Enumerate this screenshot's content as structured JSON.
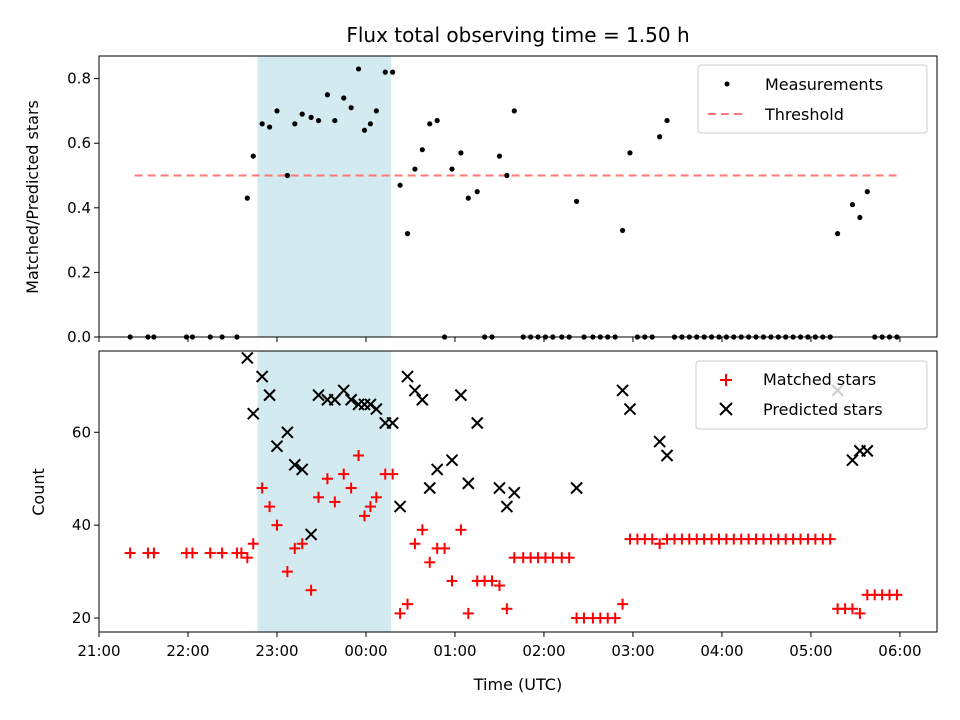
{
  "chart_data": [
    {
      "type": "scatter",
      "title": "Flux total observing time = 1.50 h",
      "xlabel": "",
      "ylabel": "Matched/Predicted stars",
      "xlim": [
        "21:00",
        "06:25"
      ],
      "ylim": [
        0,
        0.87
      ],
      "yticks": [
        0.0,
        0.2,
        0.4,
        0.6,
        0.8
      ],
      "ytick_labels": [
        "0.0",
        "0.2",
        "0.4",
        "0.6",
        "0.8"
      ],
      "xticks": [
        "21:00",
        "22:00",
        "23:00",
        "00:00",
        "01:00",
        "02:00",
        "03:00",
        "04:00",
        "05:00",
        "06:00"
      ],
      "shaded_span": {
        "start": "22:47",
        "end": "00:17",
        "color": "#a6d5e2"
      },
      "legend": {
        "position": "upper right",
        "entries": [
          "Measurements",
          "Threshold"
        ]
      },
      "series": [
        {
          "name": "Measurements",
          "marker": "dot",
          "color": "#000000",
          "points": [
            [
              "21:21",
              0
            ],
            [
              "21:33",
              0
            ],
            [
              "21:37",
              0
            ],
            [
              "21:59",
              0
            ],
            [
              "22:03",
              0
            ],
            [
              "22:15",
              0
            ],
            [
              "22:23",
              0
            ],
            [
              "22:33",
              0
            ],
            [
              "22:40",
              0.43
            ],
            [
              "22:44",
              0.56
            ],
            [
              "22:50",
              0.66
            ],
            [
              "22:55",
              0.65
            ],
            [
              "23:00",
              0.7
            ],
            [
              "23:07",
              0.5
            ],
            [
              "23:12",
              0.66
            ],
            [
              "23:17",
              0.69
            ],
            [
              "23:23",
              0.68
            ],
            [
              "23:28",
              0.67
            ],
            [
              "23:34",
              0.75
            ],
            [
              "23:39",
              0.67
            ],
            [
              "23:45",
              0.74
            ],
            [
              "23:50",
              0.71
            ],
            [
              "23:55",
              0.83
            ],
            [
              "23:59",
              0.64
            ],
            [
              "00:03",
              0.66
            ],
            [
              "00:07",
              0.7
            ],
            [
              "00:13",
              0.82
            ],
            [
              "00:18",
              0.82
            ],
            [
              "00:23",
              0.47
            ],
            [
              "00:28",
              0.32
            ],
            [
              "00:33",
              0.52
            ],
            [
              "00:38",
              0.58
            ],
            [
              "00:43",
              0.66
            ],
            [
              "00:48",
              0.67
            ],
            [
              "00:53",
              0
            ],
            [
              "00:58",
              0.52
            ],
            [
              "01:04",
              0.57
            ],
            [
              "01:09",
              0.43
            ],
            [
              "01:15",
              0.45
            ],
            [
              "01:20",
              0
            ],
            [
              "01:25",
              0
            ],
            [
              "01:30",
              0.56
            ],
            [
              "01:35",
              0.5
            ],
            [
              "01:40",
              0.7
            ],
            [
              "01:46",
              0
            ],
            [
              "01:51",
              0
            ],
            [
              "01:56",
              0
            ],
            [
              "02:01",
              0
            ],
            [
              "02:06",
              0
            ],
            [
              "02:12",
              0
            ],
            [
              "02:17",
              0
            ],
            [
              "02:22",
              0.42
            ],
            [
              "02:27",
              0
            ],
            [
              "02:33",
              0
            ],
            [
              "02:38",
              0
            ],
            [
              "02:43",
              0
            ],
            [
              "02:48",
              0
            ],
            [
              "02:53",
              0.33
            ],
            [
              "02:58",
              0.57
            ],
            [
              "03:03",
              0
            ],
            [
              "03:08",
              0
            ],
            [
              "03:13",
              0
            ],
            [
              "03:18",
              0.62
            ],
            [
              "03:23",
              0.67
            ],
            [
              "03:28",
              0
            ],
            [
              "03:33",
              0
            ],
            [
              "03:38",
              0
            ],
            [
              "03:43",
              0
            ],
            [
              "03:48",
              0
            ],
            [
              "03:53",
              0
            ],
            [
              "03:58",
              0
            ],
            [
              "04:03",
              0
            ],
            [
              "04:08",
              0
            ],
            [
              "04:13",
              0
            ],
            [
              "04:18",
              0
            ],
            [
              "04:23",
              0
            ],
            [
              "04:28",
              0
            ],
            [
              "04:33",
              0
            ],
            [
              "04:38",
              0
            ],
            [
              "04:43",
              0
            ],
            [
              "04:48",
              0
            ],
            [
              "04:53",
              0
            ],
            [
              "04:58",
              0
            ],
            [
              "05:03",
              0
            ],
            [
              "05:08",
              0
            ],
            [
              "05:13",
              0
            ],
            [
              "05:18",
              0.32
            ],
            [
              "05:28",
              0.41
            ],
            [
              "05:33",
              0.37
            ],
            [
              "05:38",
              0.45
            ],
            [
              "05:43",
              0
            ],
            [
              "05:48",
              0
            ],
            [
              "05:53",
              0
            ],
            [
              "05:58",
              0
            ]
          ]
        },
        {
          "name": "Threshold",
          "style": "dashed",
          "color": "#ff7777",
          "points": [
            [
              "21:24",
              0.5
            ],
            [
              "05:58",
              0.5
            ]
          ]
        }
      ]
    },
    {
      "type": "scatter",
      "title": "",
      "xlabel": "Time (UTC)",
      "ylabel": "Count",
      "xlim": [
        "21:00",
        "06:25"
      ],
      "ylim": [
        17,
        77.5
      ],
      "yticks": [
        20,
        40,
        60
      ],
      "ytick_labels": [
        "20",
        "40",
        "60"
      ],
      "xticks": [
        "21:00",
        "22:00",
        "23:00",
        "00:00",
        "01:00",
        "02:00",
        "03:00",
        "04:00",
        "05:00",
        "06:00"
      ],
      "xtick_labels": [
        "21:00",
        "22:00",
        "23:00",
        "00:00",
        "01:00",
        "02:00",
        "03:00",
        "04:00",
        "05:00",
        "06:00"
      ],
      "shaded_span": {
        "start": "22:47",
        "end": "00:17",
        "color": "#a6d5e2"
      },
      "legend": {
        "position": "upper right",
        "entries": [
          "Matched stars",
          "Predicted stars"
        ]
      },
      "series": [
        {
          "name": "Matched stars",
          "marker": "plus",
          "color": "#ff0000",
          "points": [
            [
              "21:21",
              34
            ],
            [
              "21:33",
              34
            ],
            [
              "21:37",
              34
            ],
            [
              "21:59",
              34
            ],
            [
              "22:03",
              34
            ],
            [
              "22:15",
              34
            ],
            [
              "22:23",
              34
            ],
            [
              "22:33",
              34
            ],
            [
              "22:36",
              34
            ],
            [
              "22:40",
              33
            ],
            [
              "22:44",
              36
            ],
            [
              "22:50",
              48
            ],
            [
              "22:55",
              44
            ],
            [
              "23:00",
              40
            ],
            [
              "23:07",
              30
            ],
            [
              "23:12",
              35
            ],
            [
              "23:17",
              36
            ],
            [
              "23:23",
              26
            ],
            [
              "23:28",
              46
            ],
            [
              "23:34",
              50
            ],
            [
              "23:39",
              45
            ],
            [
              "23:45",
              51
            ],
            [
              "23:50",
              48
            ],
            [
              "23:55",
              55
            ],
            [
              "23:59",
              42
            ],
            [
              "00:03",
              44
            ],
            [
              "00:07",
              46
            ],
            [
              "00:13",
              51
            ],
            [
              "00:18",
              51
            ],
            [
              "00:23",
              21
            ],
            [
              "00:28",
              23
            ],
            [
              "00:33",
              36
            ],
            [
              "00:38",
              39
            ],
            [
              "00:43",
              32
            ],
            [
              "00:48",
              35
            ],
            [
              "00:53",
              35
            ],
            [
              "00:58",
              28
            ],
            [
              "01:04",
              39
            ],
            [
              "01:09",
              21
            ],
            [
              "01:15",
              28
            ],
            [
              "01:20",
              28
            ],
            [
              "01:25",
              28
            ],
            [
              "01:30",
              27
            ],
            [
              "01:35",
              22
            ],
            [
              "01:40",
              33
            ],
            [
              "01:46",
              33
            ],
            [
              "01:51",
              33
            ],
            [
              "01:56",
              33
            ],
            [
              "02:01",
              33
            ],
            [
              "02:06",
              33
            ],
            [
              "02:12",
              33
            ],
            [
              "02:17",
              33
            ],
            [
              "02:22",
              20
            ],
            [
              "02:27",
              20
            ],
            [
              "02:33",
              20
            ],
            [
              "02:38",
              20
            ],
            [
              "02:43",
              20
            ],
            [
              "02:48",
              20
            ],
            [
              "02:53",
              23
            ],
            [
              "02:58",
              37
            ],
            [
              "03:03",
              37
            ],
            [
              "03:08",
              37
            ],
            [
              "03:13",
              37
            ],
            [
              "03:18",
              36
            ],
            [
              "03:23",
              37
            ],
            [
              "03:28",
              37
            ],
            [
              "03:33",
              37
            ],
            [
              "03:38",
              37
            ],
            [
              "03:43",
              37
            ],
            [
              "03:48",
              37
            ],
            [
              "03:53",
              37
            ],
            [
              "03:58",
              37
            ],
            [
              "04:03",
              37
            ],
            [
              "04:08",
              37
            ],
            [
              "04:13",
              37
            ],
            [
              "04:18",
              37
            ],
            [
              "04:23",
              37
            ],
            [
              "04:28",
              37
            ],
            [
              "04:33",
              37
            ],
            [
              "04:38",
              37
            ],
            [
              "04:43",
              37
            ],
            [
              "04:48",
              37
            ],
            [
              "04:53",
              37
            ],
            [
              "04:58",
              37
            ],
            [
              "05:03",
              37
            ],
            [
              "05:08",
              37
            ],
            [
              "05:13",
              37
            ],
            [
              "05:18",
              22
            ],
            [
              "05:23",
              22
            ],
            [
              "05:28",
              22
            ],
            [
              "05:33",
              21
            ],
            [
              "05:38",
              25
            ],
            [
              "05:43",
              25
            ],
            [
              "05:48",
              25
            ],
            [
              "05:53",
              25
            ],
            [
              "05:58",
              25
            ]
          ]
        },
        {
          "name": "Predicted stars",
          "marker": "x",
          "color": "#000000",
          "points": [
            [
              "22:40",
              76
            ],
            [
              "22:44",
              64
            ],
            [
              "22:50",
              72
            ],
            [
              "22:55",
              68
            ],
            [
              "23:00",
              57
            ],
            [
              "23:07",
              60
            ],
            [
              "23:12",
              53
            ],
            [
              "23:17",
              52
            ],
            [
              "23:23",
              38
            ],
            [
              "23:28",
              68
            ],
            [
              "23:34",
              67
            ],
            [
              "23:39",
              67
            ],
            [
              "23:45",
              69
            ],
            [
              "23:50",
              67
            ],
            [
              "23:55",
              66
            ],
            [
              "23:59",
              66
            ],
            [
              "00:03",
              66
            ],
            [
              "00:07",
              65
            ],
            [
              "00:13",
              62
            ],
            [
              "00:18",
              62
            ],
            [
              "00:23",
              44
            ],
            [
              "00:28",
              72
            ],
            [
              "00:33",
              69
            ],
            [
              "00:38",
              67
            ],
            [
              "00:43",
              48
            ],
            [
              "00:48",
              52
            ],
            [
              "00:58",
              54
            ],
            [
              "01:04",
              68
            ],
            [
              "01:09",
              49
            ],
            [
              "01:15",
              62
            ],
            [
              "01:30",
              48
            ],
            [
              "01:35",
              44
            ],
            [
              "01:40",
              47
            ],
            [
              "02:22",
              48
            ],
            [
              "02:53",
              69
            ],
            [
              "02:58",
              65
            ],
            [
              "03:18",
              58
            ],
            [
              "03:23",
              55
            ],
            [
              "05:18",
              69
            ],
            [
              "05:28",
              54
            ],
            [
              "05:33",
              56
            ],
            [
              "05:38",
              56
            ]
          ]
        }
      ]
    }
  ]
}
